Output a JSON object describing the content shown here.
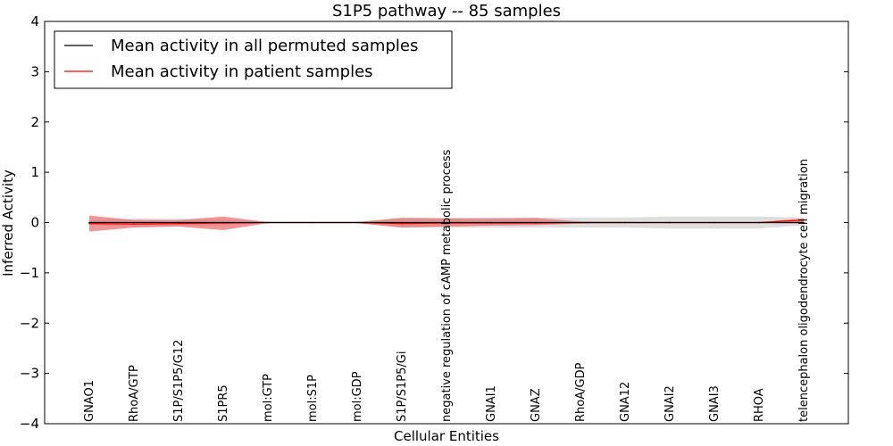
{
  "chart_data": {
    "type": "line",
    "title": "S1P5 pathway -- 85 samples",
    "xlabel": "Cellular Entities",
    "ylabel": "Inferred Activity",
    "ylim": [
      -4,
      4
    ],
    "yticks": [
      4,
      3,
      2,
      1,
      0,
      -1,
      -2,
      -3,
      -4
    ],
    "ytick_labels": [
      "4",
      "3",
      "2",
      "1",
      "0",
      "−1",
      "−2",
      "−3",
      "−4"
    ],
    "categories": [
      "GNAO1",
      "RhoA/GTP",
      "S1P/S1P5/G12",
      "S1PR5",
      "mol:GTP",
      "mol:S1P",
      "mol:GDP",
      "S1P/S1P5/Gi",
      "negative regulation of cAMP metabolic process",
      "GNAI1",
      "GNAZ",
      "RhoA/GDP",
      "GNA12",
      "GNAI2",
      "GNAI3",
      "RHOA",
      "telencephalon oligodendrocyte cell migration"
    ],
    "legend_position": "top-left",
    "series": [
      {
        "name": "Mean activity in all permuted samples",
        "color": "#000000",
        "band_color": "#c8c8c8",
        "values": [
          0,
          0,
          0,
          0,
          0,
          0,
          0,
          0,
          0,
          0,
          0,
          0,
          0,
          0,
          0,
          0,
          0
        ],
        "lower": [
          -0.05,
          -0.08,
          -0.07,
          -0.06,
          -0.01,
          -0.01,
          -0.01,
          -0.1,
          -0.1,
          -0.1,
          -0.1,
          -0.1,
          -0.1,
          -0.12,
          -0.12,
          -0.12,
          -0.05
        ],
        "upper": [
          0.05,
          0.08,
          0.07,
          0.06,
          0.01,
          0.01,
          0.01,
          0.1,
          0.1,
          0.1,
          0.1,
          0.1,
          0.1,
          0.12,
          0.12,
          0.12,
          0.1
        ]
      },
      {
        "name": "Mean activity in patient samples",
        "color": "#ff0000",
        "band_color": "#e8696b",
        "values": [
          -0.02,
          -0.03,
          -0.02,
          -0.01,
          0,
          0,
          0,
          -0.02,
          -0.01,
          -0.01,
          -0.01,
          0,
          0,
          0,
          0,
          0,
          0.05
        ],
        "lower": [
          -0.18,
          -0.1,
          -0.08,
          -0.15,
          -0.01,
          -0.01,
          -0.01,
          -0.1,
          -0.08,
          -0.06,
          -0.05,
          -0.02,
          -0.01,
          -0.01,
          -0.01,
          -0.01,
          -0.02
        ],
        "upper": [
          0.14,
          0.05,
          0.05,
          0.12,
          0.01,
          0.01,
          0.01,
          0.09,
          0.08,
          0.08,
          0.09,
          0.02,
          0.01,
          0.01,
          0.01,
          0.01,
          0.08
        ]
      }
    ]
  }
}
